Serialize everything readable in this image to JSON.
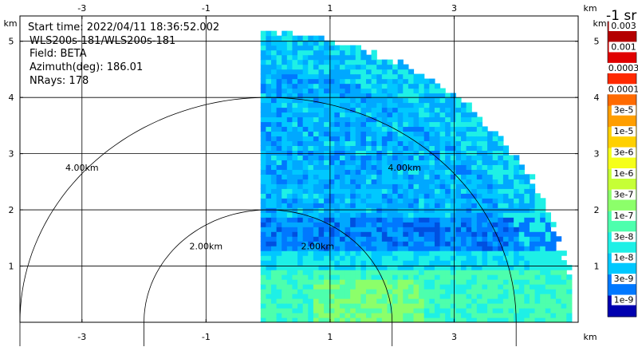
{
  "info": {
    "start_time": "Start time: 2022/04/11 18:36:52.002",
    "instrument": "WLS200s-181/WLS200s-181",
    "field": "Field: BETA",
    "azimuth": "Azimuth(deg): 186.01",
    "nrays": "NRays: 178"
  },
  "colorbar": {
    "title": "-1 sr",
    "labels": [
      "0.003",
      "0.001",
      "0.0003",
      "0.0001",
      "3e-5",
      "1e-5",
      "3e-6",
      "1e-6",
      "3e-7",
      "1e-7",
      "3e-8",
      "1e-8",
      "3e-9",
      "1e-9"
    ],
    "colors": [
      "#b40000",
      "#e00000",
      "#ff2a00",
      "#ff6a00",
      "#ff9e00",
      "#ffd000",
      "#f5ff1a",
      "#c6ff36",
      "#8cff6a",
      "#4dffad",
      "#1ef0e6",
      "#00c8ff",
      "#0078ff",
      "#0000b0"
    ]
  },
  "chart_data": {
    "type": "heatmap",
    "title": "",
    "x_unit": "km",
    "y_unit": "km",
    "xlim": [
      -4.0,
      5.0
    ],
    "ylim": [
      0,
      5.45
    ],
    "x_ticks": [
      -3,
      -1,
      1,
      3
    ],
    "y_ticks": [
      1,
      2,
      3,
      4,
      5
    ],
    "x_tick_labels": [
      "-3",
      "-1",
      "1",
      "3"
    ],
    "y_tick_labels": [
      "1",
      "2",
      "3",
      "4",
      "5"
    ],
    "grid": true,
    "range_rings": [
      {
        "radius_km": 2,
        "label": "2.00km"
      },
      {
        "radius_km": 4,
        "label": "4.00km"
      }
    ],
    "range_ring_label_positions_km": [
      {
        "x": -1.0,
        "y": 1.3,
        "label": "2.00km"
      },
      {
        "x": 0.8,
        "y": 1.3,
        "label": "2.00km"
      },
      {
        "x": -3.0,
        "y": 2.7,
        "label": "4.00km"
      },
      {
        "x": 2.2,
        "y": 2.7,
        "label": "4.00km"
      }
    ],
    "scan_sector": {
      "x_min_km": -0.12,
      "max_range_km": 5.1
    },
    "field": "BETA",
    "azimuth_deg": 186.01,
    "nrays": 178
  }
}
